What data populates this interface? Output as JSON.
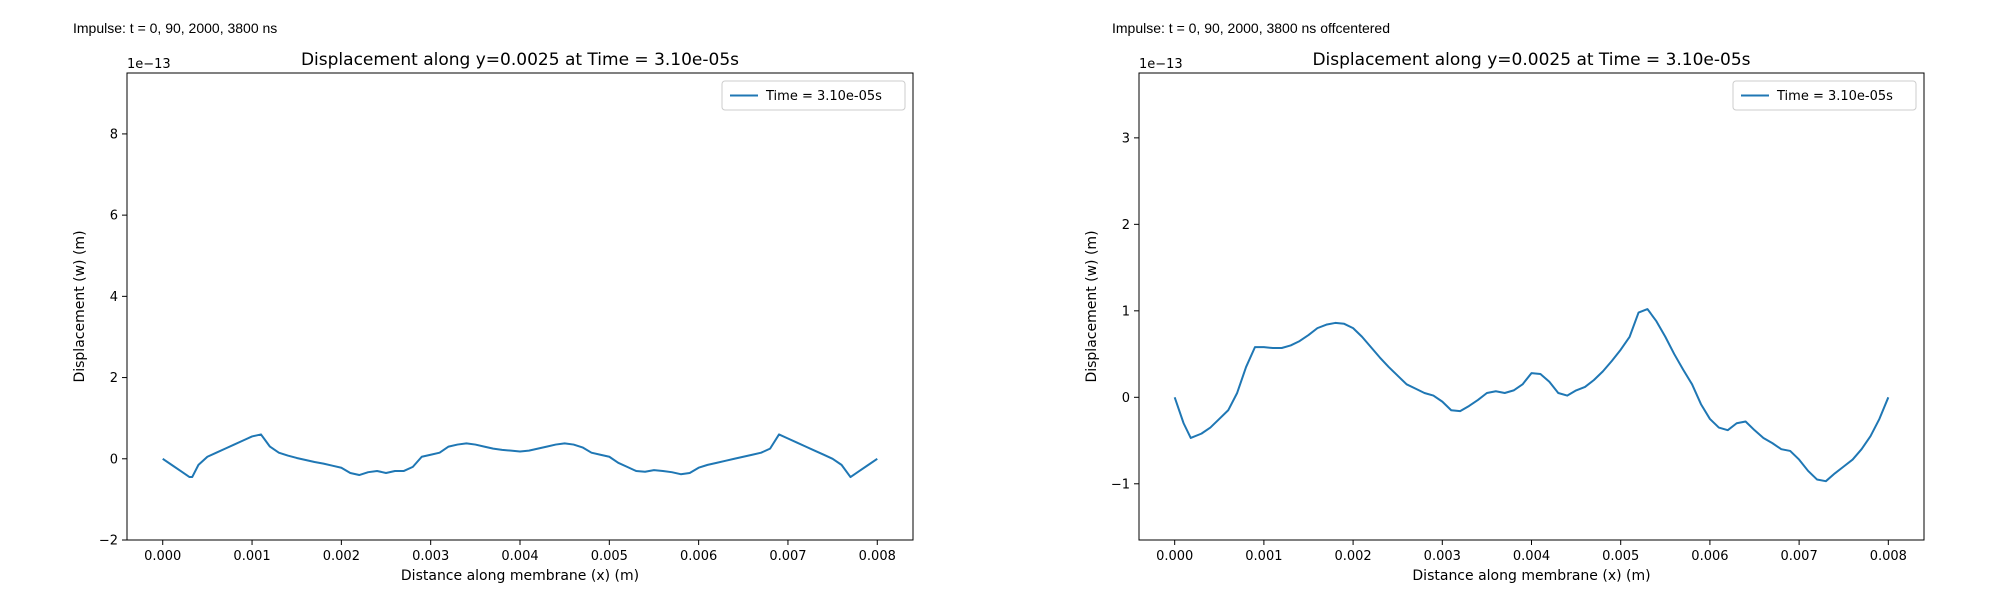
{
  "captions": {
    "left": "Impulse: t = 0, 90, 2000, 3800 ns",
    "right": "Impulse: t = 0, 90, 2000, 3800 ns offcentered"
  },
  "colors": {
    "line": "#1f77b4",
    "axes": "#000000",
    "background": "#ffffff"
  },
  "chart_data": [
    {
      "type": "line",
      "title": "Displacement along y=0.0025 at Time = 3.10e-05s",
      "xlabel": "Distance along membrane (x) (m)",
      "ylabel": "Displacement (w) (m)",
      "y_offset_label": "1e−13",
      "xlim": [
        -0.0004,
        0.0084
      ],
      "ylim": [
        -2,
        9.5
      ],
      "xticks": [
        0.0,
        0.001,
        0.002,
        0.003,
        0.004,
        0.005,
        0.006,
        0.007,
        0.008
      ],
      "xtick_labels": [
        "0.000",
        "0.001",
        "0.002",
        "0.003",
        "0.004",
        "0.005",
        "0.006",
        "0.007",
        "0.008"
      ],
      "yticks": [
        -2,
        0,
        2,
        4,
        6,
        8
      ],
      "ytick_labels": [
        "−2",
        "0",
        "2",
        "4",
        "6",
        "8"
      ],
      "grid": false,
      "legend_position": "top-right",
      "series": [
        {
          "name": "Time = 3.10e-05s",
          "x": [
            0.0,
            0.0001,
            0.0002,
            0.0003,
            0.00033,
            0.0004,
            0.0005,
            0.0006,
            0.0007,
            0.0008,
            0.0009,
            0.001,
            0.0011,
            0.00115,
            0.0012,
            0.0013,
            0.0014,
            0.0015,
            0.0016,
            0.0017,
            0.0018,
            0.0019,
            0.002,
            0.0021,
            0.0022,
            0.0023,
            0.0024,
            0.0025,
            0.0026,
            0.0027,
            0.0028,
            0.0029,
            0.003,
            0.0031,
            0.0032,
            0.0033,
            0.0034,
            0.0035,
            0.0036,
            0.0037,
            0.0038,
            0.0039,
            0.004,
            0.0041,
            0.0042,
            0.0043,
            0.0044,
            0.0045,
            0.0046,
            0.0047,
            0.0048,
            0.0049,
            0.005,
            0.0051,
            0.0052,
            0.0053,
            0.0054,
            0.0055,
            0.0056,
            0.0057,
            0.0058,
            0.0059,
            0.006,
            0.0061,
            0.0062,
            0.0063,
            0.0064,
            0.0065,
            0.0066,
            0.0067,
            0.0068,
            0.0069,
            0.007,
            0.0071,
            0.0072,
            0.0073,
            0.0074,
            0.0075,
            0.0076,
            0.0077,
            0.0078,
            0.0079,
            0.008
          ],
          "y": [
            0.0,
            -0.15,
            -0.3,
            -0.45,
            -0.45,
            -0.15,
            0.05,
            0.15,
            0.25,
            0.35,
            0.45,
            0.55,
            0.6,
            0.45,
            0.3,
            0.15,
            0.08,
            0.02,
            -0.03,
            -0.08,
            -0.12,
            -0.17,
            -0.22,
            -0.35,
            -0.4,
            -0.33,
            -0.3,
            -0.35,
            -0.3,
            -0.3,
            -0.2,
            0.05,
            0.1,
            0.15,
            0.3,
            0.35,
            0.38,
            0.35,
            0.3,
            0.25,
            0.22,
            0.2,
            0.18,
            0.2,
            0.25,
            0.3,
            0.35,
            0.38,
            0.35,
            0.28,
            0.15,
            0.1,
            0.05,
            -0.1,
            -0.2,
            -0.3,
            -0.32,
            -0.28,
            -0.3,
            -0.33,
            -0.38,
            -0.35,
            -0.22,
            -0.15,
            -0.1,
            -0.05,
            0.0,
            0.05,
            0.1,
            0.15,
            0.25,
            0.6,
            0.5,
            0.4,
            0.3,
            0.2,
            0.1,
            0.0,
            -0.15,
            -0.45,
            -0.3,
            -0.15,
            0.0
          ]
        }
      ]
    },
    {
      "type": "line",
      "title": "Displacement along y=0.0025 at Time = 3.10e-05s",
      "xlabel": "Distance along membrane (x) (m)",
      "ylabel": "Displacement (w) (m)",
      "y_offset_label": "1e−13",
      "xlim": [
        -0.0004,
        0.0084
      ],
      "ylim": [
        -1.65,
        3.75
      ],
      "xticks": [
        0.0,
        0.001,
        0.002,
        0.003,
        0.004,
        0.005,
        0.006,
        0.007,
        0.008
      ],
      "xtick_labels": [
        "0.000",
        "0.001",
        "0.002",
        "0.003",
        "0.004",
        "0.005",
        "0.006",
        "0.007",
        "0.008"
      ],
      "yticks": [
        -1,
        0,
        1,
        2,
        3
      ],
      "ytick_labels": [
        "−1",
        "0",
        "1",
        "2",
        "3"
      ],
      "grid": false,
      "legend_position": "top-right",
      "series": [
        {
          "name": "Time = 3.10e-05s",
          "x": [
            0.0,
            0.0001,
            0.00018,
            0.0003,
            0.0004,
            0.0005,
            0.0006,
            0.0007,
            0.0008,
            0.0009,
            0.001,
            0.0011,
            0.0012,
            0.0013,
            0.0014,
            0.0015,
            0.0016,
            0.0017,
            0.0018,
            0.0019,
            0.002,
            0.0021,
            0.0022,
            0.0023,
            0.0024,
            0.0025,
            0.0026,
            0.0027,
            0.0028,
            0.0029,
            0.003,
            0.0031,
            0.0032,
            0.0033,
            0.0034,
            0.0035,
            0.0036,
            0.0037,
            0.0038,
            0.0039,
            0.004,
            0.0041,
            0.0042,
            0.0043,
            0.0044,
            0.0045,
            0.0046,
            0.0047,
            0.0048,
            0.0049,
            0.005,
            0.0051,
            0.0052,
            0.0053,
            0.0054,
            0.0055,
            0.0056,
            0.0057,
            0.0058,
            0.0059,
            0.006,
            0.0061,
            0.0062,
            0.0063,
            0.0064,
            0.0065,
            0.0066,
            0.0067,
            0.0068,
            0.0069,
            0.007,
            0.0071,
            0.0072,
            0.0073,
            0.0074,
            0.0075,
            0.0076,
            0.0077,
            0.0078,
            0.0079,
            0.008
          ],
          "y": [
            0.0,
            -0.3,
            -0.47,
            -0.42,
            -0.35,
            -0.25,
            -0.15,
            0.05,
            0.35,
            0.58,
            0.58,
            0.57,
            0.57,
            0.6,
            0.65,
            0.72,
            0.8,
            0.84,
            0.86,
            0.85,
            0.8,
            0.7,
            0.58,
            0.46,
            0.35,
            0.25,
            0.15,
            0.1,
            0.05,
            0.02,
            -0.05,
            -0.15,
            -0.16,
            -0.1,
            -0.03,
            0.05,
            0.07,
            0.05,
            0.08,
            0.15,
            0.28,
            0.27,
            0.18,
            0.05,
            0.02,
            0.08,
            0.12,
            0.2,
            0.3,
            0.42,
            0.55,
            0.7,
            0.98,
            1.02,
            0.88,
            0.7,
            0.5,
            0.32,
            0.15,
            -0.08,
            -0.25,
            -0.35,
            -0.38,
            -0.3,
            -0.28,
            -0.38,
            -0.47,
            -0.53,
            -0.6,
            -0.62,
            -0.72,
            -0.85,
            -0.95,
            -0.97,
            -0.88,
            -0.8,
            -0.72,
            -0.6,
            -0.45,
            -0.25,
            0.0
          ]
        }
      ]
    }
  ]
}
